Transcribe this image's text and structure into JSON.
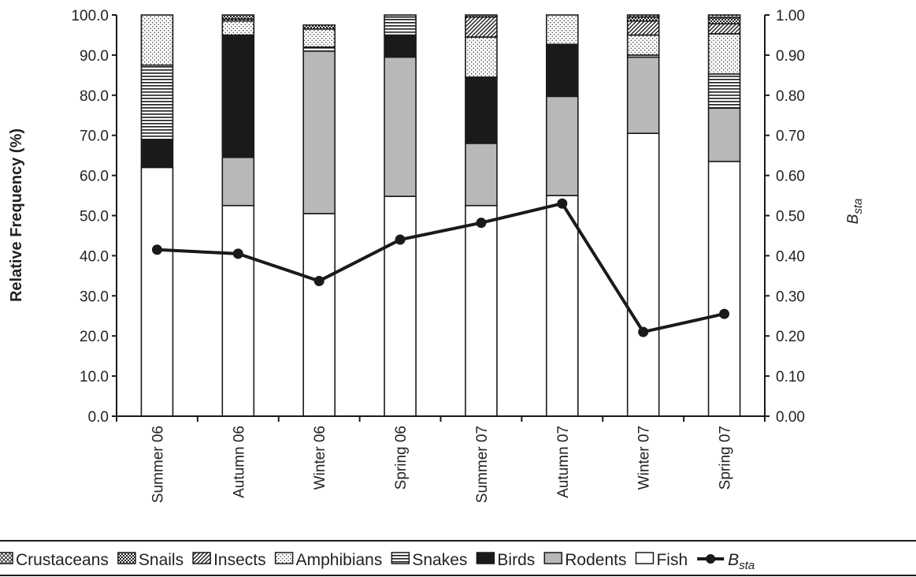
{
  "chart_data": {
    "type": "bar",
    "stacked": true,
    "categories": [
      "Summer 06",
      "Autumn 06",
      "Winter 06",
      "Spring 06",
      "Summer 07",
      "Autumn 07",
      "Winter 07",
      "Spring 07"
    ],
    "ylabel": "Relative Frequency (%)",
    "ylim": [
      0,
      100
    ],
    "yticks": [
      "0.0",
      "10.0",
      "20.0",
      "30.0",
      "40.0",
      "50.0",
      "60.0",
      "70.0",
      "80.0",
      "90.0",
      "100.0"
    ],
    "y2label": "Bsta",
    "y2lim": [
      0,
      1
    ],
    "y2ticks": [
      "0.00",
      "0.10",
      "0.20",
      "0.30",
      "0.40",
      "0.50",
      "0.60",
      "0.70",
      "0.80",
      "0.90",
      "1.00"
    ],
    "grid": false,
    "legend_position": "bottom",
    "series": [
      {
        "name": "Fish",
        "pattern": "solid-white",
        "values": [
          62.0,
          52.5,
          50.5,
          54.8,
          52.5,
          55.0,
          70.5,
          63.5
        ]
      },
      {
        "name": "Rodents",
        "pattern": "solid-gray",
        "values": [
          0.0,
          12.0,
          40.5,
          34.7,
          15.5,
          24.7,
          19.0,
          13.3
        ]
      },
      {
        "name": "Birds",
        "pattern": "solid-black",
        "values": [
          7.0,
          30.5,
          0.0,
          5.5,
          16.5,
          13.0,
          0.0,
          0.0
        ]
      },
      {
        "name": "Snakes",
        "pattern": "horizontal-lines",
        "values": [
          18.5,
          0.0,
          1.0,
          4.5,
          0.0,
          0.0,
          0.5,
          8.5
        ]
      },
      {
        "name": "Amphibians",
        "pattern": "dots",
        "values": [
          12.5,
          3.5,
          4.5,
          0.5,
          10.0,
          7.3,
          5.0,
          10.0
        ]
      },
      {
        "name": "Insects",
        "pattern": "diagonal",
        "values": [
          0.0,
          0.5,
          0.0,
          0.0,
          5.0,
          0.0,
          3.5,
          2.5
        ]
      },
      {
        "name": "Snails",
        "pattern": "checker",
        "values": [
          0.0,
          1.0,
          1.0,
          0.0,
          0.5,
          0.0,
          1.0,
          1.5
        ]
      },
      {
        "name": "Crustaceans",
        "pattern": "crosshatch",
        "values": [
          0.0,
          0.0,
          0.0,
          0.0,
          0.0,
          0.0,
          0.5,
          0.7
        ]
      }
    ],
    "line": {
      "name": "Bsta",
      "axis": "right",
      "values": [
        0.415,
        0.405,
        0.337,
        0.44,
        0.482,
        0.53,
        0.21,
        0.255
      ]
    }
  },
  "legend": {
    "items": [
      {
        "label": "Crustaceans",
        "pattern": "crosshatch"
      },
      {
        "label": "Snails",
        "pattern": "checker"
      },
      {
        "label": "Insects",
        "pattern": "diagonal"
      },
      {
        "label": "Amphibians",
        "pattern": "dots"
      },
      {
        "label": "Snakes",
        "pattern": "horizontal-lines"
      },
      {
        "label": "Birds",
        "pattern": "solid-black"
      },
      {
        "label": "Rodents",
        "pattern": "solid-gray"
      },
      {
        "label": "Fish",
        "pattern": "solid-white"
      }
    ],
    "line_label_base": "B",
    "line_label_sub": "sta"
  },
  "axes": {
    "ylabel": "Relative Frequency (%)",
    "y2label_base": "B",
    "y2label_sub": "sta"
  },
  "colors": {
    "ink": "#1a1a1a",
    "rodents": "#b8b8b8",
    "birds": "#1a1a1a",
    "fish": "#ffffff"
  }
}
